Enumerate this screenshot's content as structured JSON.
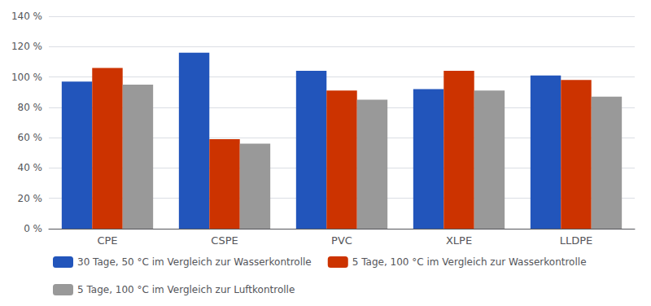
{
  "chart_data": {
    "type": "bar",
    "categories": [
      "CPE",
      "CSPE",
      "PVC",
      "XLPE",
      "LLDPE"
    ],
    "series": [
      {
        "name": "30 Tage, 50 °C im Vergleich zur Wasserkontrolle",
        "color": "#2255BB",
        "values": [
          97,
          116,
          104,
          92,
          101
        ]
      },
      {
        "name": "5 Tage, 100 °C im Vergleich zur Wasserkontrolle",
        "color": "#CC3300",
        "values": [
          106,
          59,
          91,
          104,
          98
        ]
      },
      {
        "name": "5 Tage, 100 °C im Vergleich zur Luftkontrolle",
        "color": "#999999",
        "values": [
          95,
          56,
          85,
          91,
          87
        ]
      }
    ],
    "ylim": [
      0,
      140
    ],
    "yticks": [
      {
        "value": 0,
        "label": "0 %"
      },
      {
        "value": 20,
        "label": "20 %"
      },
      {
        "value": 40,
        "label": "40 %"
      },
      {
        "value": 60,
        "label": "60 %"
      },
      {
        "value": 80,
        "label": "80 %"
      },
      {
        "value": 100,
        "label": "100 %"
      },
      {
        "value": 120,
        "label": "120 %"
      },
      {
        "value": 140,
        "label": "140 %"
      }
    ],
    "grid": true,
    "legend": "bottom"
  }
}
